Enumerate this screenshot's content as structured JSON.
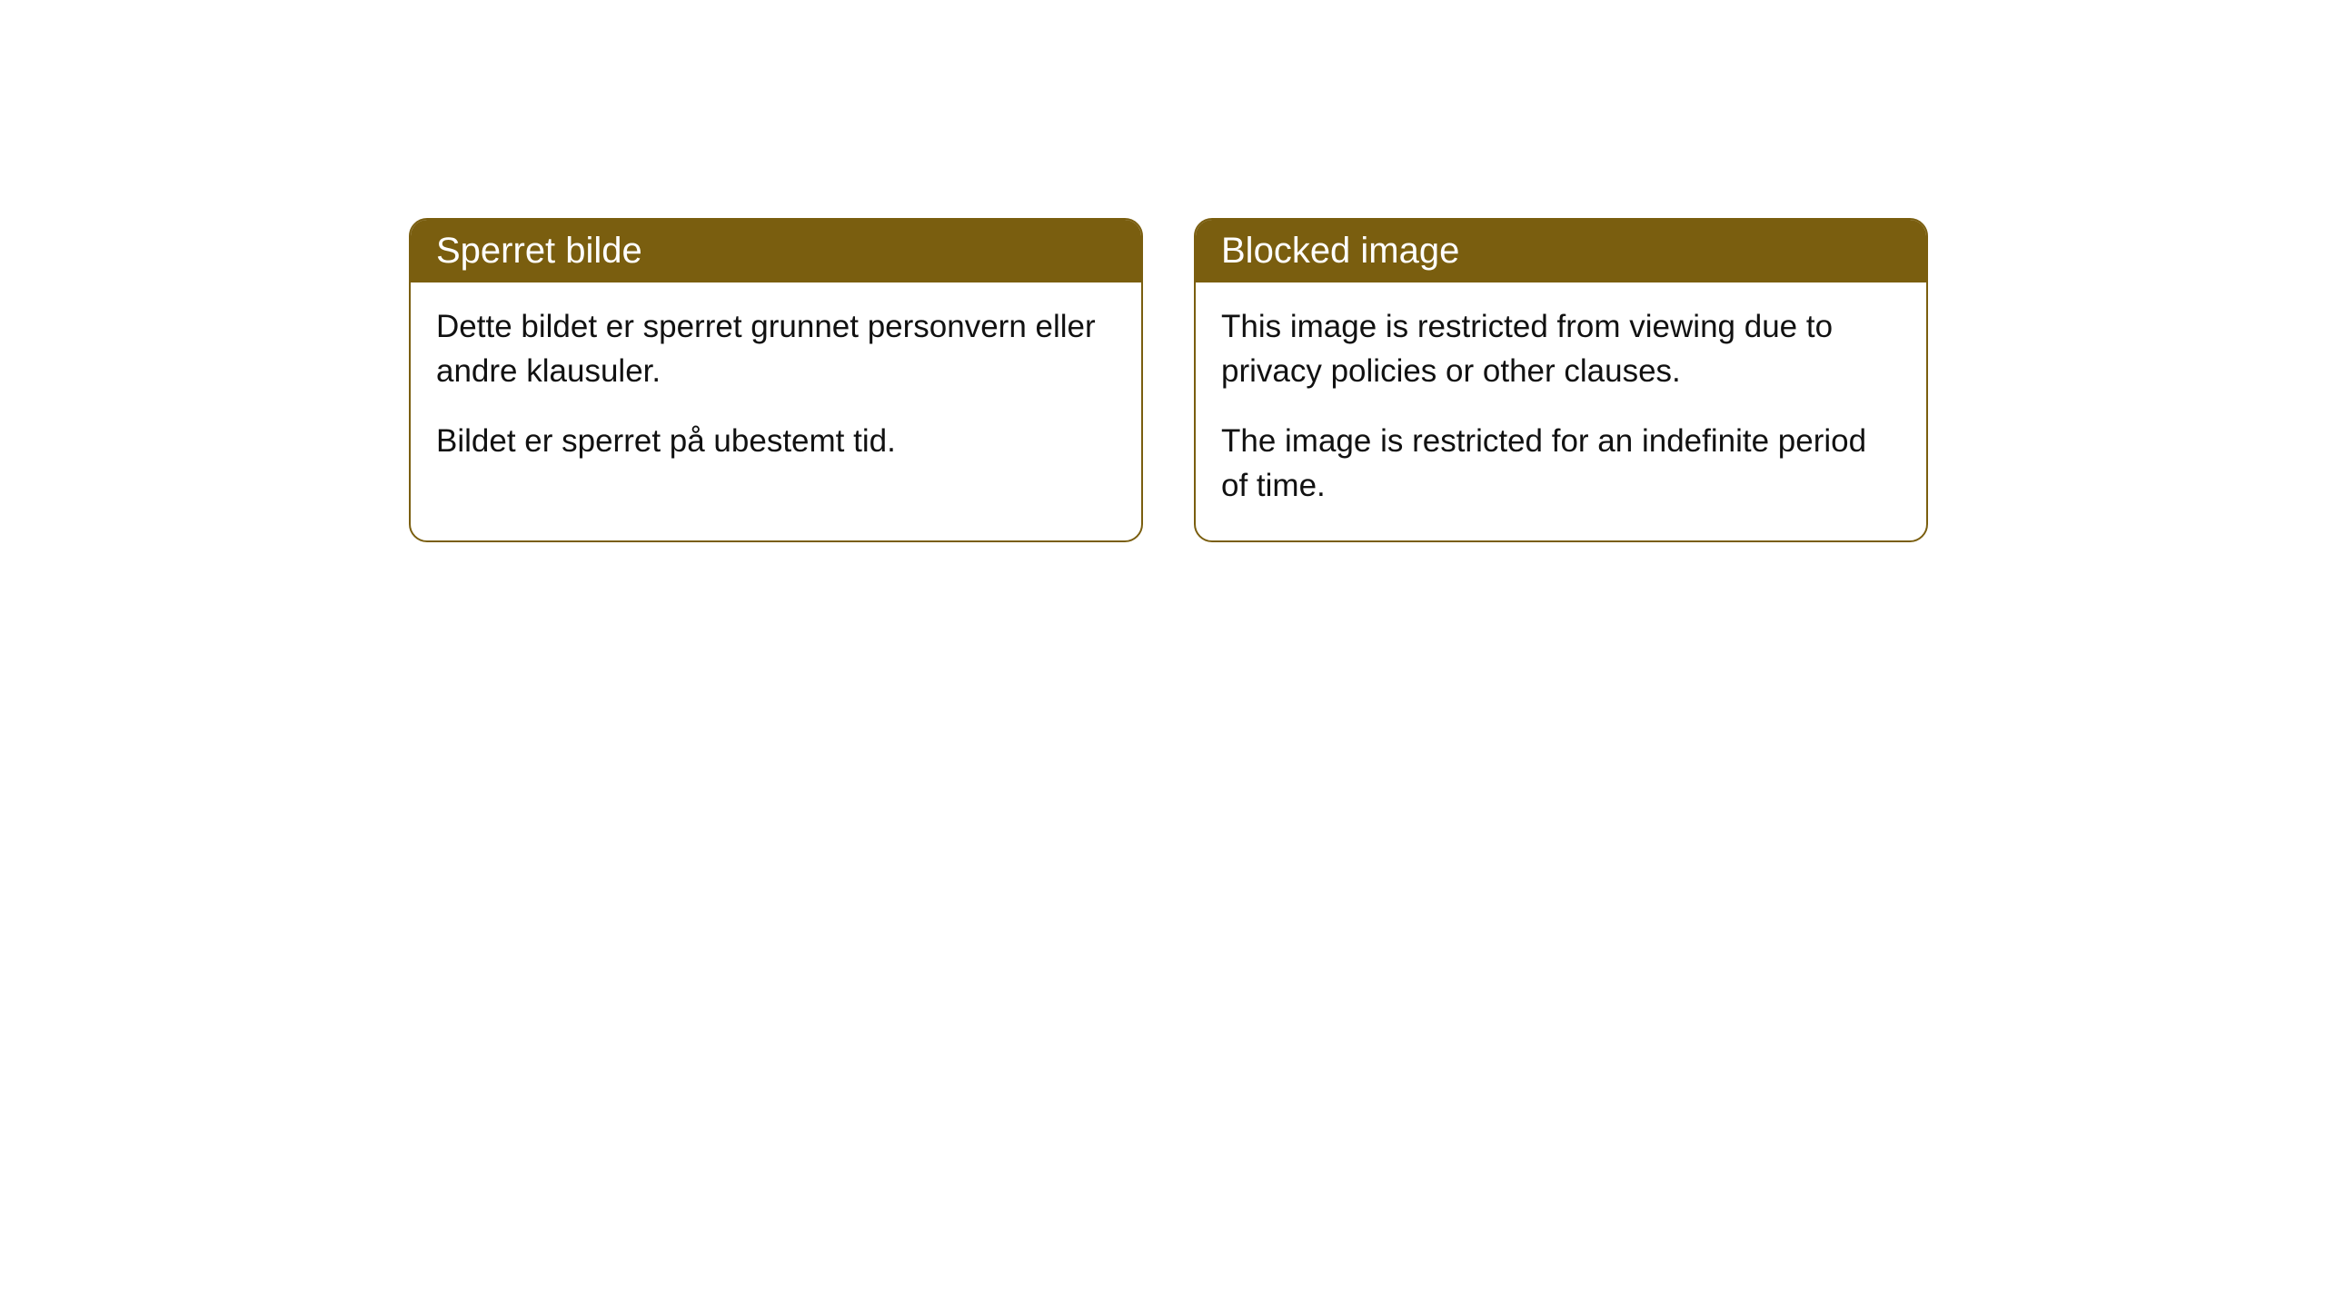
{
  "cards": [
    {
      "title": "Sperret bilde",
      "paragraph1": "Dette bildet er sperret grunnet personvern eller andre klausuler.",
      "paragraph2": "Bildet er sperret på ubestemt tid."
    },
    {
      "title": "Blocked image",
      "paragraph1": "This image is restricted from viewing due to privacy policies or other clauses.",
      "paragraph2": "The image is restricted for an indefinite period of time."
    }
  ],
  "style": {
    "header_background": "#7a5e0f",
    "header_text_color": "#ffffff",
    "border_color": "#7a5e0f",
    "body_background": "#ffffff",
    "body_text_color": "#111111",
    "border_radius": 20,
    "title_fontsize": 40,
    "body_fontsize": 35
  }
}
